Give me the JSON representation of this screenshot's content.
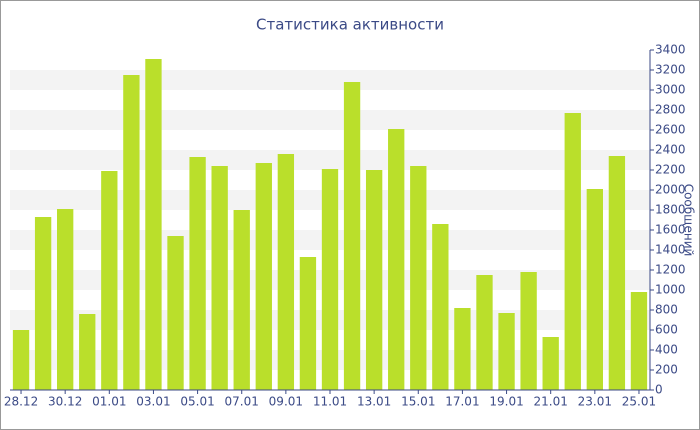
{
  "chart_data": {
    "type": "bar",
    "title": "Статистика активности",
    "y_label": "Сообщений",
    "categories": [
      "28.12",
      null,
      "30.12",
      null,
      "01.01",
      null,
      "03.01",
      null,
      "05.01",
      null,
      "07.01",
      null,
      "09.01",
      null,
      "11.01",
      null,
      "13.01",
      null,
      "15.01",
      null,
      "17.01",
      null,
      "19.01",
      null,
      "21.01",
      null,
      "23.01",
      null,
      "25.01"
    ],
    "values": [
      600,
      1730,
      1810,
      760,
      2190,
      3150,
      3310,
      1540,
      2330,
      2240,
      1800,
      2270,
      2360,
      1330,
      2210,
      3080,
      2200,
      2610,
      2240,
      1660,
      820,
      1150,
      770,
      1180,
      530,
      2770,
      2010,
      2340,
      980
    ],
    "color": "#badf2b",
    "ylim": [
      0,
      3400
    ],
    "yticks": [
      0,
      200,
      400,
      600,
      800,
      1000,
      1200,
      1400,
      1600,
      1800,
      2000,
      2200,
      2400,
      2600,
      2800,
      3000,
      3200,
      3400
    ],
    "grid": true
  }
}
